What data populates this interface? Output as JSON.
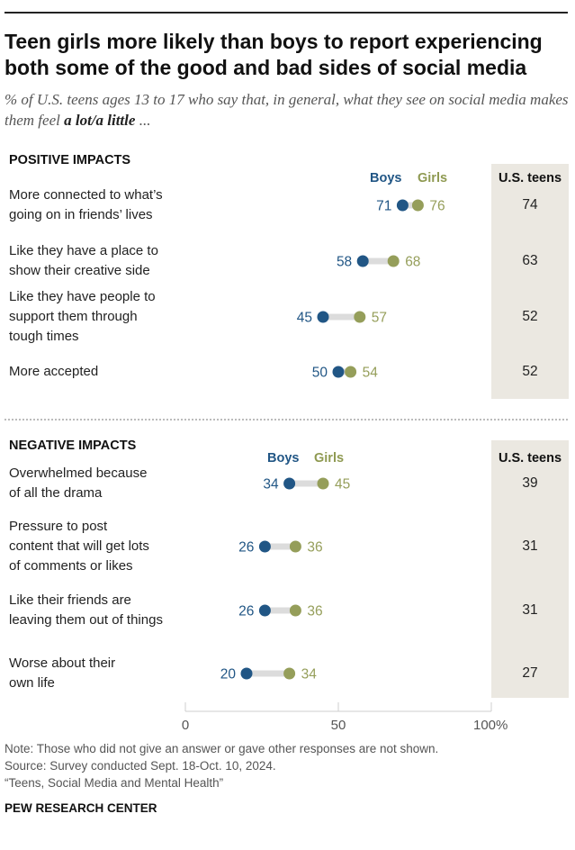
{
  "title": "Teen girls more likely than boys to report experiencing both some of the good and bad sides of social media",
  "subtitle": {
    "prefix": "% of U.S. teens ages 13 to 17 who say that, in general, what they see on social media makes them feel ",
    "emphasis": "a lot/a little",
    "suffix": " ..."
  },
  "legend": {
    "boys": "Boys",
    "girls": "Girls",
    "teens": "U.S. teens"
  },
  "colors": {
    "boys": "#215685",
    "girls": "#959e5a",
    "connector": "#dcdcdc",
    "teens_bg": "#ebe8e1"
  },
  "chart_data": {
    "type": "dot-plot",
    "x_axis": {
      "range": [
        0,
        100
      ],
      "ticks": [
        "0",
        "50",
        "100%"
      ]
    },
    "groups": [
      {
        "title": "POSITIVE IMPACTS",
        "rows": [
          {
            "label": [
              "More connected to what’s",
              "going on in friends’ lives"
            ],
            "boys": 71,
            "girls": 76,
            "teens": 74
          },
          {
            "label": [
              "Like they have a place to",
              "show their creative side"
            ],
            "boys": 58,
            "girls": 68,
            "teens": 63
          },
          {
            "label": [
              "Like they have people to",
              "support them through",
              "tough times"
            ],
            "boys": 45,
            "girls": 57,
            "teens": 52
          },
          {
            "label": [
              "More accepted"
            ],
            "boys": 50,
            "girls": 54,
            "teens": 52
          }
        ]
      },
      {
        "title": "NEGATIVE IMPACTS",
        "rows": [
          {
            "label": [
              "Overwhelmed because",
              "of all the drama"
            ],
            "boys": 34,
            "girls": 45,
            "teens": 39
          },
          {
            "label": [
              "Pressure to post",
              "content that will get lots",
              "of comments or likes"
            ],
            "boys": 26,
            "girls": 36,
            "teens": 31
          },
          {
            "label": [
              "Like their friends are",
              "leaving them out of things"
            ],
            "boys": 26,
            "girls": 36,
            "teens": 31
          },
          {
            "label": [
              "Worse about their",
              "own life"
            ],
            "boys": 20,
            "girls": 34,
            "teens": 27
          }
        ]
      }
    ]
  },
  "notes": [
    "Note: Those who did not give an answer or gave other responses are not shown.",
    "Source: Survey conducted Sept. 18-Oct. 10, 2024.",
    "“Teens, Social Media and Mental Health”"
  ],
  "brand": "PEW RESEARCH CENTER"
}
